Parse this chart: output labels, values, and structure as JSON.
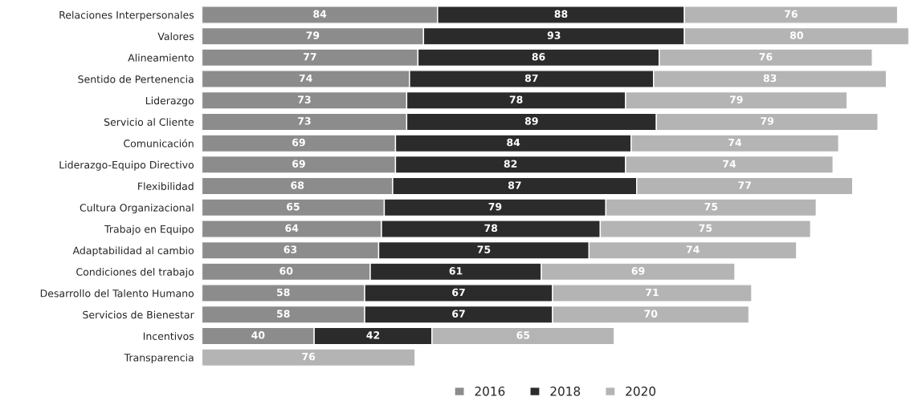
{
  "chart_data": {
    "type": "bar",
    "orientation": "horizontal",
    "stacked": true,
    "data_labels": true,
    "legend": "bottom",
    "grid": false,
    "tick_labels": "y",
    "categories": [
      "Relaciones Interpersonales",
      "Valores",
      "Alineamiento",
      "Sentido de Pertenencia",
      "Liderazgo",
      "Servicio al Cliente",
      "Comunicación",
      "Liderazgo-Equipo Directivo",
      "Flexibilidad",
      "Cultura Organizacional",
      "Trabajo en Equipo",
      "Adaptabilidad al cambio",
      "Condiciones del trabajo",
      "Desarrollo del Talento Humano",
      "Servicios de Bienestar",
      "Incentivos",
      "Transparencia"
    ],
    "series": [
      {
        "name": "2016",
        "color": "#8c8c8c",
        "values": [
          84,
          79,
          77,
          74,
          73,
          73,
          69,
          69,
          68,
          65,
          64,
          63,
          60,
          58,
          58,
          40,
          null
        ]
      },
      {
        "name": "2018",
        "color": "#2b2b2b",
        "values": [
          88,
          93,
          86,
          87,
          78,
          89,
          84,
          82,
          87,
          79,
          78,
          75,
          61,
          67,
          67,
          42,
          null
        ]
      },
      {
        "name": "2020",
        "color": "#b4b4b4",
        "values": [
          76,
          80,
          76,
          83,
          79,
          79,
          74,
          74,
          77,
          75,
          75,
          74,
          69,
          71,
          70,
          65,
          76
        ]
      }
    ]
  }
}
